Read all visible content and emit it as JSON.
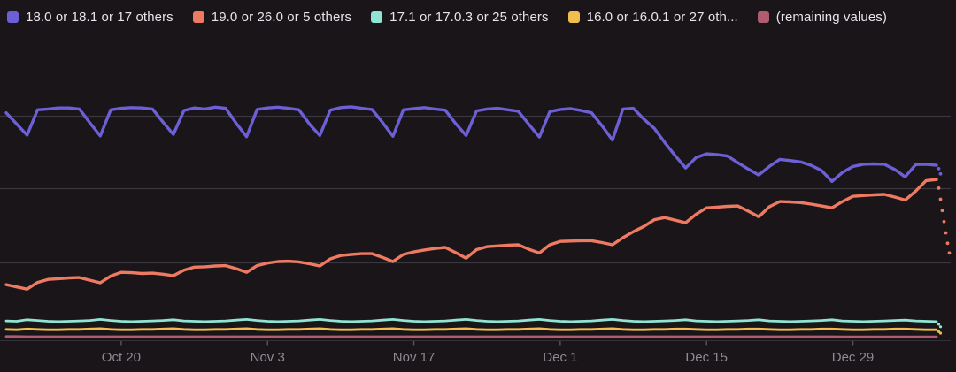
{
  "chart_data": {
    "type": "line",
    "title": "",
    "xlabel": "",
    "ylabel": "",
    "ylim": [
      0,
      80
    ],
    "num_points": 90,
    "grid": "horizontal",
    "legend_position": "top",
    "x_ticks": [
      {
        "label": "Oct 20",
        "day": 11
      },
      {
        "label": "Nov 3",
        "day": 25
      },
      {
        "label": "Nov 17",
        "day": 39
      },
      {
        "label": "Dec 1",
        "day": 53
      },
      {
        "label": "Dec 15",
        "day": 67
      },
      {
        "label": "Dec 29",
        "day": 81
      }
    ],
    "series": [
      {
        "name": "18.0 or 18.1 or 17 others",
        "color": "#6D5FD6",
        "values": [
          61.0,
          58.0,
          55.0,
          61.8,
          62.0,
          62.3,
          62.3,
          62.0,
          58.3,
          54.8,
          61.8,
          62.2,
          62.4,
          62.3,
          62.0,
          58.5,
          55.2,
          61.6,
          62.3,
          62.0,
          62.5,
          62.2,
          58.2,
          54.6,
          61.9,
          62.3,
          62.5,
          62.2,
          61.8,
          58.0,
          54.9,
          61.7,
          62.4,
          62.6,
          62.2,
          61.9,
          58.4,
          54.7,
          61.8,
          62.1,
          62.4,
          62.0,
          61.7,
          58.1,
          54.9,
          61.5,
          62.0,
          62.2,
          61.8,
          61.4,
          57.9,
          54.5,
          61.3,
          61.9,
          62.1,
          61.6,
          61.0,
          57.5,
          53.7,
          62.0,
          62.2,
          59.3,
          56.8,
          53.0,
          49.5,
          46.2,
          49.0,
          50.0,
          49.8,
          49.4,
          47.6,
          45.9,
          44.3,
          46.6,
          48.5,
          48.2,
          47.8,
          46.9,
          45.5,
          42.6,
          45.0,
          46.6,
          47.2,
          47.3,
          47.2,
          45.8,
          43.8,
          47.1,
          47.2,
          46.9
        ],
        "projected_tail": [
          46.0,
          44.6
        ]
      },
      {
        "name": "19.0 or 26.0 or 5 others",
        "color": "#EE7A61",
        "values": [
          14.9,
          14.3,
          13.7,
          15.5,
          16.3,
          16.5,
          16.7,
          16.8,
          16.1,
          15.4,
          17.2,
          18.2,
          18.1,
          17.9,
          18.0,
          17.7,
          17.3,
          18.8,
          19.6,
          19.7,
          19.9,
          20.0,
          19.2,
          18.2,
          20.0,
          20.7,
          21.1,
          21.2,
          21.0,
          20.5,
          19.9,
          21.8,
          22.7,
          23.0,
          23.2,
          23.2,
          22.2,
          21.1,
          23.0,
          23.7,
          24.2,
          24.6,
          24.9,
          23.5,
          22.0,
          24.3,
          25.1,
          25.3,
          25.5,
          25.6,
          24.4,
          23.4,
          25.6,
          26.5,
          26.6,
          26.7,
          26.7,
          26.2,
          25.6,
          27.5,
          29.1,
          30.5,
          32.3,
          32.9,
          32.2,
          31.5,
          33.8,
          35.5,
          35.7,
          35.9,
          36.0,
          34.6,
          33.1,
          35.8,
          37.2,
          37.1,
          36.9,
          36.5,
          36.0,
          35.5,
          37.2,
          38.6,
          38.8,
          39.0,
          39.1,
          38.4,
          37.6,
          40.0,
          42.8,
          43.1
        ],
        "projected_tail": [
          40.8,
          37.8,
          34.8,
          31.8,
          28.8,
          26.0,
          23.4
        ]
      },
      {
        "name": "17.1 or 17.0.3 or 25 others",
        "color": "#8FE4D4",
        "values": [
          5.2,
          5.1,
          5.5,
          5.3,
          5.1,
          5.0,
          5.1,
          5.2,
          5.3,
          5.6,
          5.3,
          5.1,
          5.0,
          5.1,
          5.2,
          5.3,
          5.5,
          5.2,
          5.1,
          5.0,
          5.1,
          5.2,
          5.4,
          5.6,
          5.3,
          5.1,
          5.0,
          5.1,
          5.2,
          5.4,
          5.6,
          5.3,
          5.1,
          5.0,
          5.1,
          5.2,
          5.4,
          5.6,
          5.3,
          5.1,
          5.0,
          5.1,
          5.2,
          5.4,
          5.6,
          5.3,
          5.1,
          5.0,
          5.1,
          5.2,
          5.4,
          5.6,
          5.3,
          5.1,
          5.0,
          5.1,
          5.2,
          5.4,
          5.6,
          5.3,
          5.1,
          5.0,
          5.1,
          5.2,
          5.3,
          5.5,
          5.2,
          5.1,
          5.0,
          5.1,
          5.2,
          5.3,
          5.5,
          5.2,
          5.1,
          5.0,
          5.1,
          5.2,
          5.3,
          5.5,
          5.2,
          5.1,
          5.0,
          5.1,
          5.2,
          5.3,
          5.4,
          5.2,
          5.1,
          5.0
        ],
        "projected_tail": [
          4.3,
          3.6
        ]
      },
      {
        "name": "16.0 or 16.0.1 or 27 oth...",
        "color": "#EFBE4D",
        "values": [
          2.9,
          2.8,
          3.0,
          2.9,
          2.8,
          2.8,
          2.9,
          2.9,
          3.0,
          3.1,
          2.9,
          2.8,
          2.8,
          2.9,
          2.9,
          3.0,
          3.1,
          2.9,
          2.8,
          2.8,
          2.9,
          2.9,
          3.0,
          3.1,
          2.9,
          2.8,
          2.8,
          2.9,
          2.9,
          3.0,
          3.1,
          2.9,
          2.8,
          2.8,
          2.9,
          2.9,
          3.0,
          3.1,
          2.9,
          2.8,
          2.8,
          2.9,
          2.9,
          3.0,
          3.1,
          2.9,
          2.8,
          2.8,
          2.9,
          2.9,
          3.0,
          3.1,
          2.9,
          2.8,
          2.8,
          2.9,
          2.9,
          3.0,
          3.1,
          2.9,
          2.8,
          2.8,
          2.9,
          2.9,
          3.0,
          3.0,
          2.9,
          2.8,
          2.8,
          2.9,
          2.9,
          3.0,
          3.0,
          2.9,
          2.8,
          2.8,
          2.9,
          2.9,
          3.0,
          3.0,
          2.9,
          2.8,
          2.8,
          2.9,
          2.9,
          3.0,
          3.0,
          2.9,
          2.8,
          2.8
        ],
        "projected_tail": [
          2.3,
          1.9
        ]
      },
      {
        "name": "(remaining values)",
        "color": "#B15C70",
        "values": [
          1.0,
          1.0,
          0.95,
          0.95,
          0.95,
          0.95,
          0.95,
          0.95,
          0.95,
          0.95,
          0.95,
          0.95,
          0.95,
          0.95,
          0.95,
          0.95,
          0.95,
          0.95,
          0.95,
          0.95,
          0.95,
          0.95,
          0.95,
          0.95,
          0.95,
          0.95,
          0.95,
          0.95,
          0.95,
          0.95,
          0.95,
          0.95,
          0.95,
          0.95,
          0.95,
          0.95,
          0.95,
          0.95,
          0.95,
          0.95,
          0.95,
          0.95,
          0.95,
          0.95,
          0.95,
          0.95,
          0.95,
          0.95,
          0.95,
          0.95,
          0.95,
          0.95,
          0.95,
          0.95,
          0.95,
          0.95,
          0.95,
          0.95,
          0.95,
          0.95,
          0.95,
          0.95,
          0.95,
          0.95,
          0.95,
          0.95,
          0.95,
          0.95,
          0.95,
          0.95,
          0.95,
          0.95,
          0.95,
          0.95,
          0.95,
          0.95,
          0.95,
          0.95,
          0.95,
          0.95,
          0.9,
          0.9,
          0.9,
          0.9,
          0.9,
          0.9,
          0.9,
          0.9,
          0.9,
          0.9
        ],
        "projected_tail": []
      }
    ]
  }
}
